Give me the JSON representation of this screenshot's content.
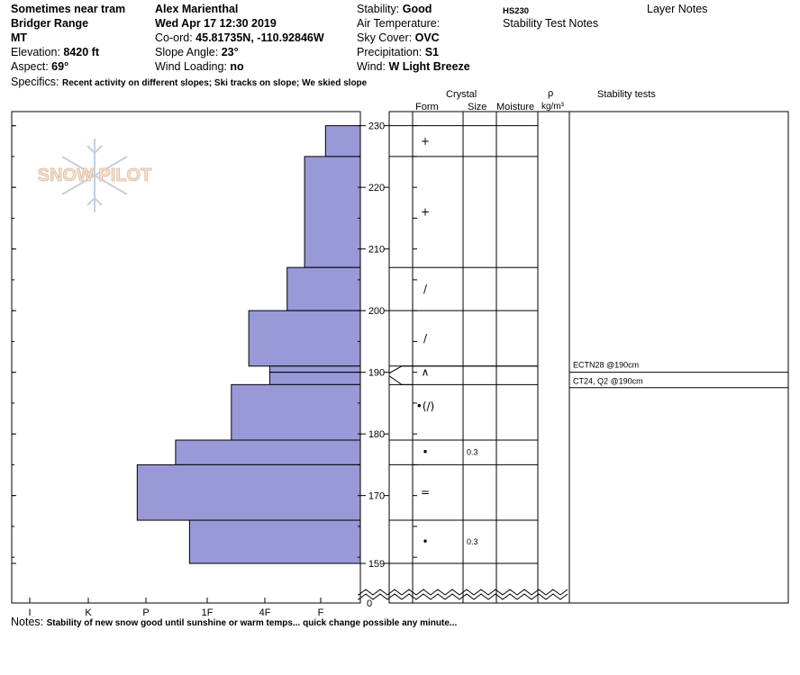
{
  "header": {
    "location": "Sometimes near tram",
    "range": "Bridger Range",
    "state": "MT",
    "elevation_label": "Elevation:",
    "elevation_value": "8420 ft",
    "aspect_label": "Aspect:",
    "aspect_value": "69°",
    "observer": "Alex Marienthal",
    "datetime": "Wed Apr 17 12:30 2019",
    "coord_label": "Co-ord:",
    "coord_value": "45.81735N, -110.92846W",
    "slope_label": "Slope Angle:",
    "slope_value": "23°",
    "wind_loading_label": "Wind Loading:",
    "wind_loading_value": "no",
    "stability_label": "Stability:",
    "stability_value": "Good",
    "air_temp_label": "Air Temperature:",
    "sky_label": "Sky Cover:",
    "sky_value": "OVC",
    "precip_label": "Precipitation:",
    "precip_value": "S1",
    "wind_label": "Wind:",
    "wind_value": "W Light Breeze",
    "hs": "HS230",
    "stability_notes_heading": "Stability Test Notes",
    "layer_notes_heading": "Layer Notes",
    "specifics_label": "Specifics:",
    "specifics_value": "Recent activity on different slopes; Ski tracks on slope; We skied slope"
  },
  "watermark": "SNOW PILOT",
  "notes": {
    "label": "Notes:",
    "value": "Stability of new snow good until sunshine or warm temps... quick change possible any minute..."
  },
  "columns": {
    "crystal": "Crystal",
    "form": "Form",
    "size": "Size",
    "moisture": "Moisture",
    "rho": "ρ",
    "density_unit": "kg/m³",
    "stability_tests": "Stability tests"
  },
  "chart_data": {
    "type": "bar",
    "title": "",
    "hardness_scale": [
      "I",
      "K",
      "P",
      "1F",
      "4F",
      "F"
    ],
    "height_ticks": [
      230,
      220,
      210,
      200,
      190,
      180,
      170,
      159
    ],
    "height_zero_label": "0",
    "height_range": [
      0,
      230
    ],
    "hardness_profile": [
      {
        "top": 230,
        "bottom": 225,
        "hardness_fraction": 0.1
      },
      {
        "top": 225,
        "bottom": 207,
        "hardness_fraction": 0.16
      },
      {
        "top": 207,
        "bottom": 200,
        "hardness_fraction": 0.21
      },
      {
        "top": 200,
        "bottom": 191,
        "hardness_fraction": 0.32
      },
      {
        "top": 191,
        "bottom": 190,
        "hardness_fraction": 0.26
      },
      {
        "top": 190,
        "bottom": 188,
        "hardness_fraction": 0.26
      },
      {
        "top": 188,
        "bottom": 179,
        "hardness_fraction": 0.37
      },
      {
        "top": 179,
        "bottom": 175,
        "hardness_fraction": 0.53
      },
      {
        "top": 175,
        "bottom": 166,
        "hardness_fraction": 0.64
      },
      {
        "top": 166,
        "bottom": 159,
        "hardness_fraction": 0.49
      }
    ],
    "layer_boundaries": [
      230,
      225,
      207,
      200,
      191,
      188,
      179,
      175,
      166,
      159
    ],
    "layers": [
      {
        "mid": 227.5,
        "form": "+",
        "size": ""
      },
      {
        "mid": 216,
        "form": "+",
        "size": ""
      },
      {
        "mid": 203.5,
        "form": "/",
        "size": ""
      },
      {
        "mid": 195.5,
        "form": "/",
        "size": ""
      },
      {
        "mid": 190,
        "form": "∧",
        "size": ""
      },
      {
        "mid": 184.5,
        "form": "•(/)",
        "size": ""
      },
      {
        "mid": 177,
        "form": "•",
        "size": "0.3"
      },
      {
        "mid": 170.5,
        "form": "=",
        "size": ""
      },
      {
        "mid": 162.5,
        "form": "•",
        "size": "0.3"
      }
    ],
    "stability_tests": [
      {
        "label": "ECTN28 @190cm"
      },
      {
        "label": "CT24, Q2 @190cm"
      }
    ],
    "colors": {
      "bar_fill": "#9999d8",
      "bar_stroke": "#000000"
    }
  }
}
